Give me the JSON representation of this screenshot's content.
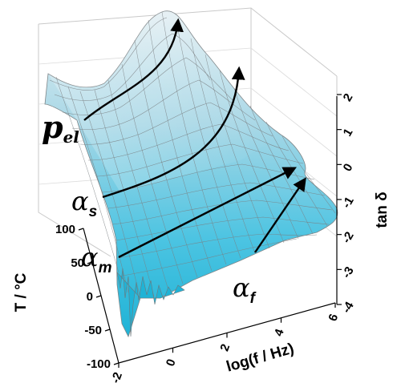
{
  "chart_data": {
    "type": "surface3d",
    "title": "",
    "xlabel": "log(f / Hz)",
    "ylabel": "T / °C",
    "zlabel": "tan δ",
    "x_ticks": [
      "-2",
      "0",
      "2",
      "4",
      "6"
    ],
    "y_ticks": [
      "-100",
      "-50",
      "0",
      "50",
      "100"
    ],
    "z_ticks": [
      "-4",
      "-3",
      "-2",
      "-1",
      "0",
      "1",
      "2"
    ],
    "xlim": [
      -2,
      6
    ],
    "ylim": [
      -100,
      100
    ],
    "zlim": [
      -4,
      2
    ],
    "z_scale": "log",
    "surface_color": "#3fb8d8",
    "mesh_color": "#7a7f82",
    "annotations": [
      {
        "base": "p",
        "sub": "el"
      },
      {
        "base": "α",
        "sub": "s"
      },
      {
        "base": "α",
        "sub": "m"
      },
      {
        "base": "α",
        "sub": "f"
      }
    ]
  }
}
